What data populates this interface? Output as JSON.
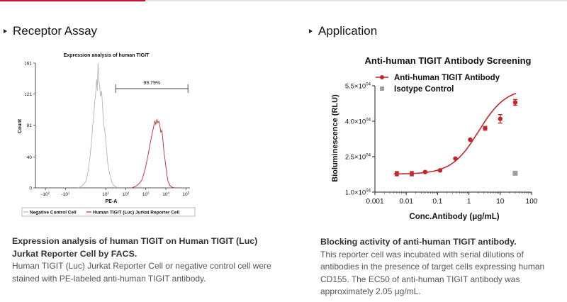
{
  "sections": {
    "receptor": {
      "title": "Receptor Assay",
      "caption_bold": "Expression analysis of human TIGIT on Human TIGIT (Luc) Jurkat Reporter Cell by FACS.",
      "caption_text": "Human TIGIT (Luc) Jurkat Reporter Cell or negative control cell were stained with PE-labeled anti-human TIGIT antibody."
    },
    "application": {
      "title": "Application",
      "caption_bold": "Blocking activity of anti-human TIGIT antibody.",
      "caption_text": "This reporter cell was incubated with serial dilutions of antibodies in the presence of target cells expressing human CD155. The EC50 of anti-human TIGIT antibody was approximately 2.05 μg/mL."
    }
  },
  "colors": {
    "accent": "#c8102e",
    "negative": "#b4b4b4",
    "tigit": "#c0262c",
    "isotype": "#9e9e9e"
  },
  "chart_data": [
    {
      "type": "histogram",
      "title": "Expression analysis of human TIGIT",
      "xlabel": "PE-A",
      "ylabel": "Count",
      "y_ticks": [
        "161",
        "121",
        "81",
        "40",
        "0"
      ],
      "y_tick_values": [
        161,
        121,
        81,
        40,
        0
      ],
      "ylim": [
        0,
        161
      ],
      "x_ticks": [
        {
          "label": "-10",
          "sup": "2",
          "pos": -2
        },
        {
          "label": "-10",
          "sup": "1",
          "pos": -1
        },
        {
          "label": "10",
          "sup": "1",
          "pos": 1
        },
        {
          "label": "10",
          "sup": "2",
          "pos": 2
        },
        {
          "label": "10",
          "sup": "3",
          "pos": 3
        },
        {
          "label": "10",
          "sup": "4",
          "pos": 4
        },
        {
          "label": "10",
          "sup": "5",
          "pos": 5
        }
      ],
      "xlim": [
        -2.5,
        5.2
      ],
      "gate": {
        "label": "99.79%",
        "from": 1.5,
        "to": 5.1,
        "height": 128
      },
      "series": [
        {
          "name": "Negative Control Cell",
          "color": "#b4b4b4",
          "points": [
            [
              -0.35,
              0
            ],
            [
              -0.15,
              3
            ],
            [
              0.0,
              8
            ],
            [
              0.1,
              18
            ],
            [
              0.2,
              35
            ],
            [
              0.3,
              62
            ],
            [
              0.35,
              80
            ],
            [
              0.4,
              90
            ],
            [
              0.45,
              110
            ],
            [
              0.5,
              120
            ],
            [
              0.55,
              140
            ],
            [
              0.58,
              126
            ],
            [
              0.62,
              161
            ],
            [
              0.66,
              138
            ],
            [
              0.7,
              130
            ],
            [
              0.75,
              118
            ],
            [
              0.8,
              125
            ],
            [
              0.85,
              104
            ],
            [
              0.9,
              82
            ],
            [
              0.95,
              75
            ],
            [
              1.0,
              62
            ],
            [
              1.05,
              48
            ],
            [
              1.1,
              32
            ],
            [
              1.2,
              18
            ],
            [
              1.3,
              8
            ],
            [
              1.4,
              3
            ],
            [
              1.6,
              0
            ]
          ]
        },
        {
          "name": "Human TIGIT (Luc) Jurkat Reporter Cell",
          "color": "#c0262c",
          "points": [
            [
              2.3,
              0
            ],
            [
              2.5,
              2
            ],
            [
              2.65,
              5
            ],
            [
              2.8,
              10
            ],
            [
              2.9,
              18
            ],
            [
              3.0,
              28
            ],
            [
              3.1,
              40
            ],
            [
              3.2,
              55
            ],
            [
              3.3,
              68
            ],
            [
              3.4,
              80
            ],
            [
              3.45,
              86
            ],
            [
              3.5,
              82
            ],
            [
              3.55,
              88
            ],
            [
              3.6,
              84
            ],
            [
              3.65,
              86
            ],
            [
              3.7,
              80
            ],
            [
              3.75,
              72
            ],
            [
              3.8,
              74
            ],
            [
              3.85,
              62
            ],
            [
              3.9,
              48
            ],
            [
              3.95,
              38
            ],
            [
              4.0,
              28
            ],
            [
              4.05,
              18
            ],
            [
              4.1,
              9
            ],
            [
              4.2,
              3
            ],
            [
              4.3,
              1
            ],
            [
              4.4,
              0
            ]
          ]
        }
      ],
      "legend": [
        "Negative Control Cell",
        "Human TIGIT (Luc) Jurkat Reporter Cell"
      ]
    },
    {
      "type": "scatter",
      "title": "Anti-human TIGIT Antibody Screening",
      "xlabel": "Conc.Antibody (μg/mL)",
      "ylabel": "Bioluminescence (RLU)",
      "xscale": "log",
      "xlim": [
        0.001,
        100
      ],
      "x_tick_values": [
        0.001,
        0.01,
        0.1,
        1,
        10,
        100
      ],
      "x_tick_labels": [
        "0.001",
        "0.01",
        "0.1",
        "1",
        "10",
        "100"
      ],
      "ylim": [
        10000,
        55000
      ],
      "y_tick_values": [
        10000,
        25000,
        40000,
        55000
      ],
      "y_tick_labels": [
        {
          "base": "1.0×10",
          "sup": "04"
        },
        {
          "base": "2.5×10",
          "sup": "04"
        },
        {
          "base": "4.0×10",
          "sup": "04"
        },
        {
          "base": "5.5×10",
          "sup": "04"
        }
      ],
      "series": [
        {
          "name": "Anti-human TIGIT Antibody",
          "color": "#c0262c",
          "marker": "circle",
          "x": [
            0.005,
            0.015,
            0.04,
            0.12,
            0.37,
            1.1,
            3.3,
            10,
            30
          ],
          "y": [
            17800,
            17800,
            18500,
            19200,
            24200,
            32200,
            37000,
            41000,
            48000
          ],
          "err": [
            900,
            900,
            300,
            300,
            300,
            300,
            800,
            1800,
            1200
          ],
          "fit_ec50": 2.05,
          "fit_bottom": 17600,
          "fit_top": 54000,
          "fit_hill": 1.0
        },
        {
          "name": "Isotype Control",
          "color": "#9e9e9e",
          "marker": "square",
          "x": [
            30
          ],
          "y": [
            18000
          ]
        }
      ],
      "legend_position": "top-left"
    }
  ]
}
